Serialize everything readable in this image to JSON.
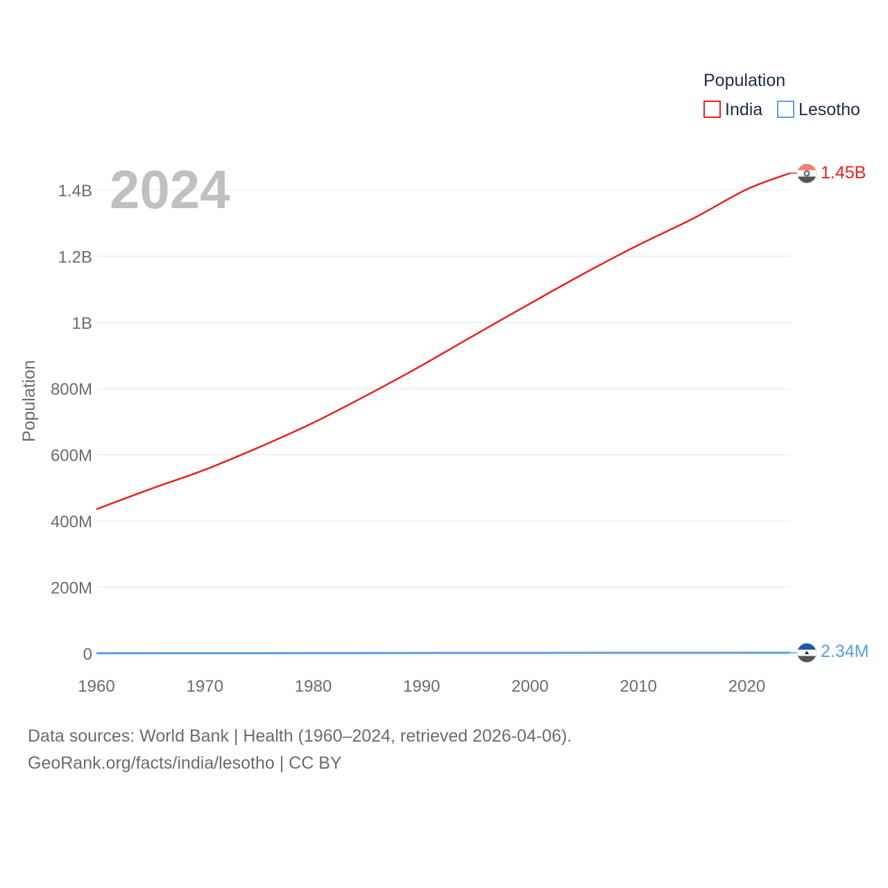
{
  "chart_data": {
    "type": "line",
    "title": "Population",
    "ylabel": "Population",
    "xlabel": "",
    "year_label": "2024",
    "xlim": [
      1960,
      2024
    ],
    "ylim": [
      0,
      1450000000
    ],
    "x_ticks": [
      1960,
      1970,
      1980,
      1990,
      2000,
      2010,
      2020
    ],
    "x_tick_labels": [
      "1960",
      "1970",
      "1980",
      "1990",
      "2000",
      "2010",
      "2020"
    ],
    "y_ticks": [
      0,
      200000000,
      400000000,
      600000000,
      800000000,
      1000000000,
      1200000000,
      1400000000
    ],
    "y_tick_labels": [
      "0",
      "200M",
      "400M",
      "600M",
      "800M",
      "1B",
      "1.2B",
      "1.4B"
    ],
    "series": [
      {
        "name": "India",
        "color": "#e8201c",
        "end_label": "1.45B",
        "x": [
          1960,
          1965,
          1970,
          1975,
          1980,
          1985,
          1990,
          1995,
          2000,
          2005,
          2010,
          2015,
          2020,
          2024
        ],
        "values": [
          436000000,
          497000000,
          555000000,
          623000000,
          697000000,
          781000000,
          870000000,
          964000000,
          1057000000,
          1148000000,
          1234000000,
          1313000000,
          1402000000,
          1451000000
        ]
      },
      {
        "name": "Lesotho",
        "color": "#5a9ee0",
        "end_label": "2.34M",
        "x": [
          1960,
          1970,
          1980,
          1990,
          2000,
          2010,
          2020,
          2024
        ],
        "values": [
          851000,
          1060000,
          1360000,
          1730000,
          1990000,
          2040000,
          2250000,
          2340000
        ]
      }
    ]
  },
  "legend": {
    "title": "Population",
    "items": [
      "India",
      "Lesotho"
    ]
  },
  "footer": {
    "sources": "Data sources: World Bank | Health (1960–2024, retrieved 2026-04-06).",
    "credit": "GeoRank.org/facts/india/lesotho | CC BY"
  },
  "flags": {
    "india": "india-flag-icon",
    "lesotho": "lesotho-flag-icon"
  }
}
